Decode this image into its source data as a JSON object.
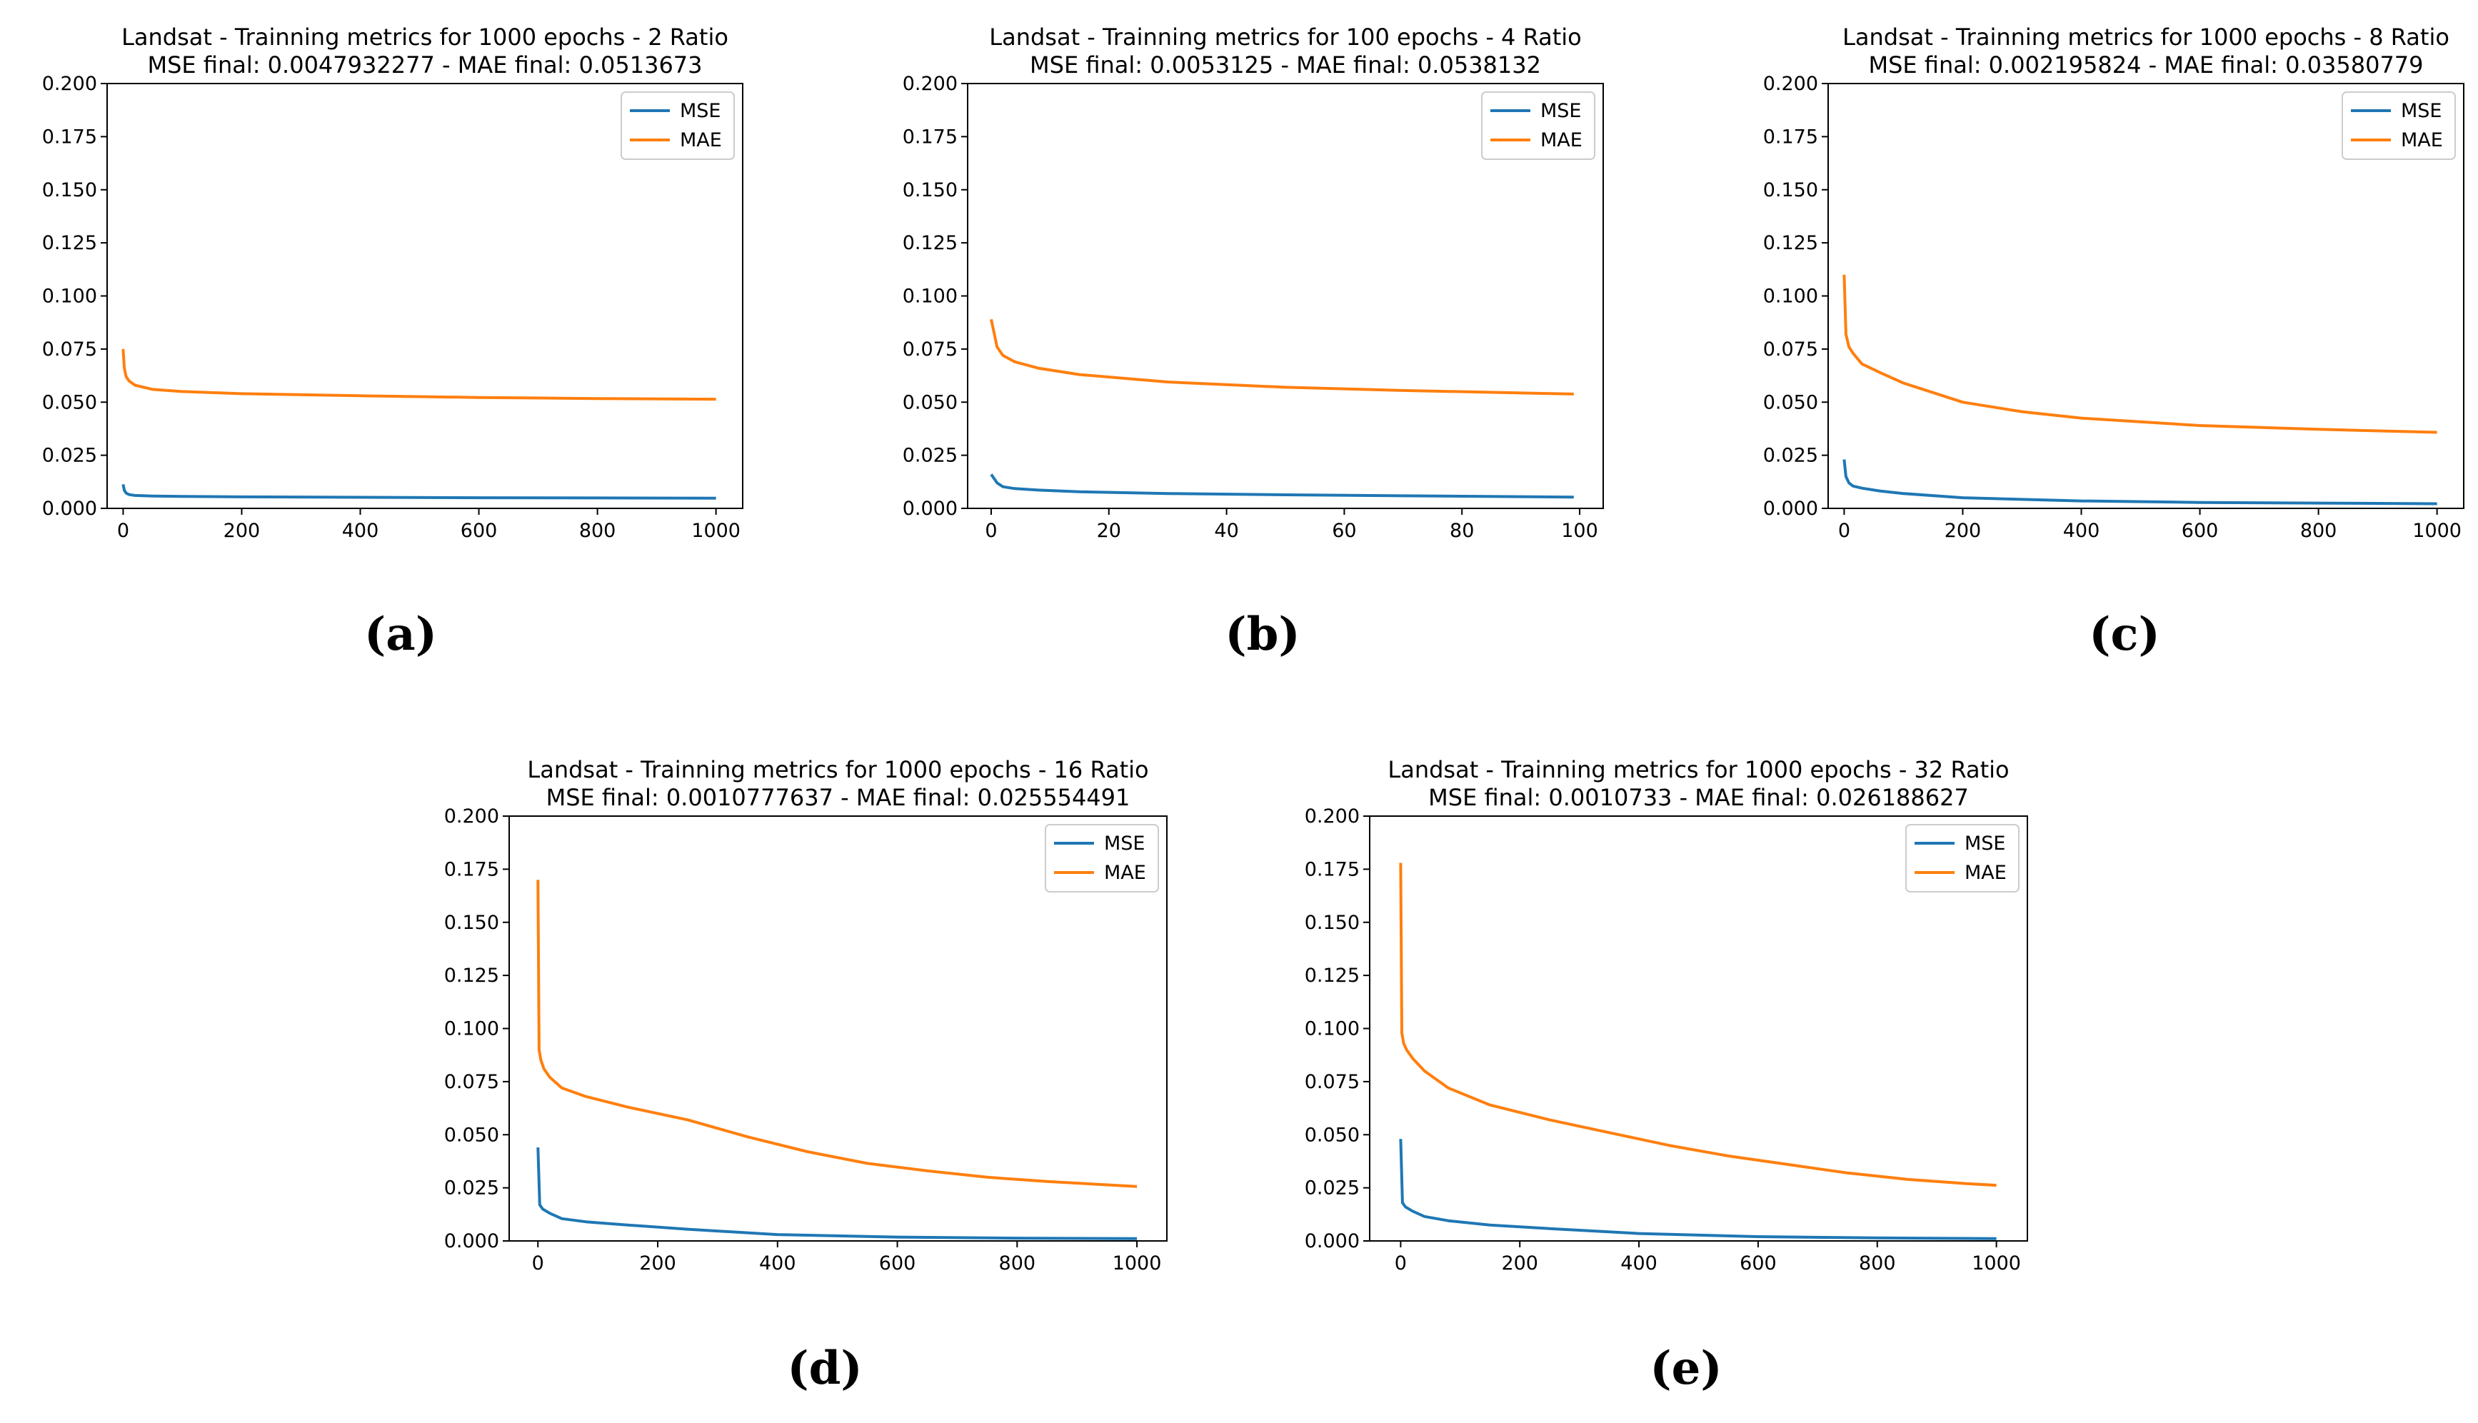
{
  "colors": {
    "mse": "#1f77b4",
    "mae": "#ff7f0e"
  },
  "chart_data": [
    {
      "type": "line",
      "caption": "(a)",
      "title": "Landsat - Trainning metrics for 1000 epochs - 2 Ratio",
      "subtitle": "MSE final: 0.0047932277 - MAE final: 0.0513673",
      "xlabel": "",
      "ylabel": "",
      "xlim": [
        -27,
        1045
      ],
      "ylim": [
        0,
        0.2
      ],
      "xticks": [
        "0",
        "200",
        "400",
        "600",
        "800",
        "1000"
      ],
      "yticks": [
        "0.000",
        "0.025",
        "0.050",
        "0.075",
        "0.100",
        "0.125",
        "0.150",
        "0.175",
        "0.200"
      ],
      "legend": "top-right",
      "series": [
        {
          "name": "MSE",
          "x": [
            0,
            2,
            5,
            10,
            20,
            50,
            100,
            200,
            400,
            600,
            800,
            1000
          ],
          "values": [
            0.0113,
            0.0085,
            0.0072,
            0.0065,
            0.0061,
            0.0058,
            0.0056,
            0.0054,
            0.0052,
            0.005,
            0.0049,
            0.0048
          ]
        },
        {
          "name": "MAE",
          "x": [
            0,
            2,
            5,
            10,
            20,
            50,
            100,
            200,
            400,
            600,
            800,
            1000
          ],
          "values": [
            0.075,
            0.066,
            0.062,
            0.06,
            0.058,
            0.056,
            0.055,
            0.054,
            0.053,
            0.0522,
            0.0517,
            0.0514
          ]
        }
      ]
    },
    {
      "type": "line",
      "caption": "(b)",
      "title": "Landsat - Trainning metrics for 100 epochs - 4 Ratio",
      "subtitle": "MSE final: 0.0053125 - MAE final: 0.0538132",
      "xlabel": "",
      "ylabel": "",
      "xlim": [
        -4,
        104
      ],
      "ylim": [
        0,
        0.2
      ],
      "xticks": [
        "0",
        "20",
        "40",
        "60",
        "80",
        "100"
      ],
      "yticks": [
        "0.000",
        "0.025",
        "0.050",
        "0.075",
        "0.100",
        "0.125",
        "0.150",
        "0.175",
        "0.200"
      ],
      "legend": "top-right",
      "series": [
        {
          "name": "MSE",
          "x": [
            0,
            1,
            2,
            4,
            8,
            15,
            30,
            50,
            70,
            99
          ],
          "values": [
            0.016,
            0.012,
            0.0102,
            0.0093,
            0.0086,
            0.0078,
            0.007,
            0.0064,
            0.0059,
            0.0053
          ]
        },
        {
          "name": "MAE",
          "x": [
            0,
            1,
            2,
            4,
            8,
            15,
            30,
            50,
            70,
            99
          ],
          "values": [
            0.089,
            0.076,
            0.072,
            0.069,
            0.066,
            0.063,
            0.0595,
            0.057,
            0.0555,
            0.0538
          ]
        }
      ]
    },
    {
      "type": "line",
      "caption": "(c)",
      "title": "Landsat - Trainning metrics for 1000 epochs - 8 Ratio",
      "subtitle": "MSE final: 0.002195824 - MAE final: 0.03580779",
      "xlabel": "",
      "ylabel": "",
      "xlim": [
        -27,
        1045
      ],
      "ylim": [
        0,
        0.2
      ],
      "xticks": [
        "0",
        "200",
        "400",
        "600",
        "800",
        "1000"
      ],
      "yticks": [
        "0.000",
        "0.025",
        "0.050",
        "0.075",
        "0.100",
        "0.125",
        "0.150",
        "0.175",
        "0.200"
      ],
      "legend": "top-right",
      "series": [
        {
          "name": "MSE",
          "x": [
            0,
            3,
            8,
            15,
            30,
            60,
            100,
            200,
            400,
            600,
            800,
            1000
          ],
          "values": [
            0.023,
            0.015,
            0.012,
            0.0105,
            0.0095,
            0.0082,
            0.007,
            0.005,
            0.0035,
            0.0028,
            0.0025,
            0.0022
          ]
        },
        {
          "name": "MAE",
          "x": [
            0,
            3,
            8,
            15,
            30,
            60,
            100,
            200,
            300,
            400,
            600,
            800,
            1000
          ],
          "values": [
            0.11,
            0.082,
            0.076,
            0.073,
            0.068,
            0.064,
            0.059,
            0.05,
            0.0455,
            0.0425,
            0.039,
            0.0372,
            0.0358
          ]
        }
      ]
    },
    {
      "type": "line",
      "caption": "(d)",
      "title": "Landsat - Trainning metrics for 1000 epochs - 16 Ratio",
      "subtitle": "MSE final: 0.0010777637 - MAE final: 0.025554491",
      "xlabel": "",
      "ylabel": "",
      "xlim": [
        -48,
        1050
      ],
      "ylim": [
        0,
        0.2
      ],
      "xticks": [
        "0",
        "200",
        "400",
        "600",
        "800",
        "1000"
      ],
      "yticks": [
        "0.000",
        "0.025",
        "0.050",
        "0.075",
        "0.100",
        "0.125",
        "0.150",
        "0.175",
        "0.200"
      ],
      "legend": "top-right",
      "series": [
        {
          "name": "MSE",
          "x": [
            0,
            3,
            8,
            20,
            40,
            80,
            150,
            250,
            400,
            600,
            800,
            1000
          ],
          "values": [
            0.044,
            0.017,
            0.015,
            0.013,
            0.0105,
            0.009,
            0.0075,
            0.0055,
            0.003,
            0.0018,
            0.0013,
            0.0011
          ]
        },
        {
          "name": "MAE",
          "x": [
            0,
            2,
            5,
            10,
            20,
            40,
            80,
            150,
            250,
            350,
            450,
            550,
            650,
            750,
            850,
            1000
          ],
          "values": [
            0.17,
            0.09,
            0.085,
            0.081,
            0.077,
            0.072,
            0.068,
            0.063,
            0.057,
            0.049,
            0.042,
            0.0365,
            0.033,
            0.03,
            0.028,
            0.0256
          ]
        }
      ]
    },
    {
      "type": "line",
      "caption": "(e)",
      "title": "Landsat - Trainning metrics for 1000 epochs - 32 Ratio",
      "subtitle": "MSE final: 0.0010733 - MAE final: 0.026188627",
      "xlabel": "",
      "ylabel": "",
      "xlim": [
        -52,
        1052
      ],
      "ylim": [
        0,
        0.2
      ],
      "xticks": [
        "0",
        "200",
        "400",
        "600",
        "800",
        "1000"
      ],
      "yticks": [
        "0.000",
        "0.025",
        "0.050",
        "0.075",
        "0.100",
        "0.125",
        "0.150",
        "0.175",
        "0.200"
      ],
      "legend": "top-right",
      "series": [
        {
          "name": "MSE",
          "x": [
            0,
            3,
            8,
            20,
            40,
            80,
            150,
            250,
            400,
            600,
            800,
            1000
          ],
          "values": [
            0.048,
            0.018,
            0.016,
            0.014,
            0.0115,
            0.0095,
            0.0075,
            0.0058,
            0.0035,
            0.002,
            0.0014,
            0.0011
          ]
        },
        {
          "name": "MAE",
          "x": [
            0,
            2,
            5,
            10,
            20,
            40,
            80,
            150,
            250,
            350,
            450,
            550,
            650,
            750,
            850,
            950,
            1000
          ],
          "values": [
            0.178,
            0.098,
            0.093,
            0.09,
            0.086,
            0.08,
            0.072,
            0.064,
            0.057,
            0.051,
            0.045,
            0.04,
            0.036,
            0.032,
            0.029,
            0.027,
            0.0262
          ]
        }
      ]
    }
  ]
}
